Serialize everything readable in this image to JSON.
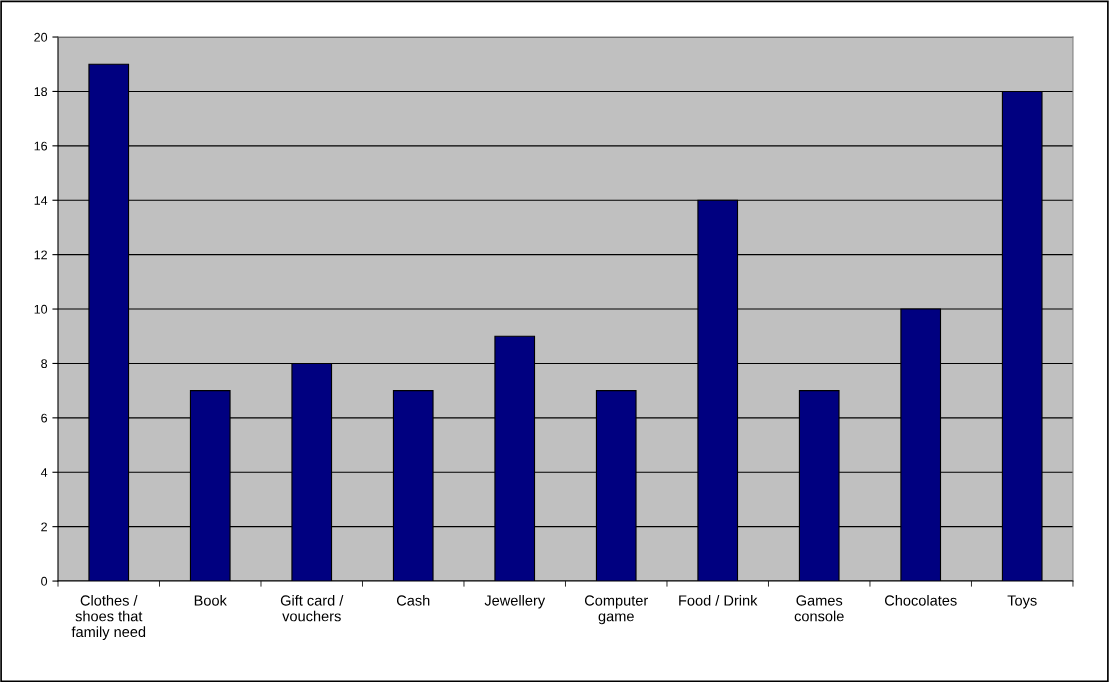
{
  "chart_data": {
    "type": "bar",
    "categories": [
      "Clothes /\nshoes that\nfamily need",
      "Book",
      "Gift card /\nvouchers",
      "Cash",
      "Jewellery",
      "Computer\ngame",
      "Food / Drink",
      "Games\nconsole",
      "Chocolates",
      "Toys"
    ],
    "values": [
      19,
      7,
      8,
      7,
      9,
      7,
      14,
      7,
      10,
      18
    ],
    "color": "#000080",
    "ylim": [
      0,
      20
    ],
    "yticks": [
      0,
      2,
      4,
      6,
      8,
      10,
      12,
      14,
      16,
      18,
      20
    ],
    "grid": "y",
    "legend": false
  }
}
